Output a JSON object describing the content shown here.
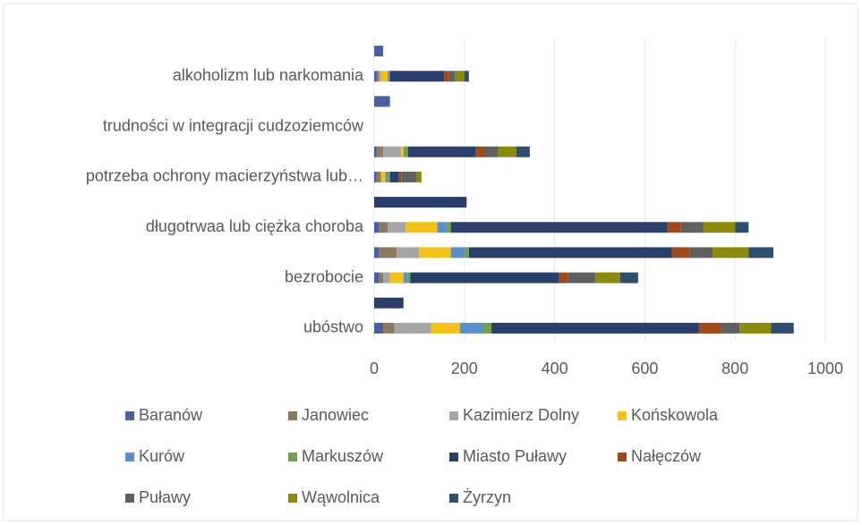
{
  "chart_data": {
    "type": "stacked-barh",
    "categories": [
      "ubóstwo",
      null,
      "bezrobocie",
      null,
      "długotrwaa lub ciężka choroba",
      null,
      "potrzeba ochrony macierzyństwa lub…",
      null,
      "trudności w integracji cudzoziemców",
      null,
      "alkoholizm lub narkomania",
      null
    ],
    "series": [
      {
        "name": "Baranów",
        "color": "#4a5fa0",
        "values": [
          20,
          0,
          10,
          10,
          10,
          0,
          5,
          5,
          0,
          35,
          5,
          20
        ]
      },
      {
        "name": "Janowiec",
        "color": "#8c7a5e",
        "values": [
          25,
          0,
          10,
          40,
          20,
          0,
          10,
          15,
          0,
          0,
          5,
          0
        ]
      },
      {
        "name": "Kazimierz Dolny",
        "color": "#a5a5a5",
        "values": [
          80,
          0,
          15,
          50,
          40,
          0,
          0,
          40,
          0,
          0,
          5,
          0
        ]
      },
      {
        "name": "Końskowola",
        "color": "#f2c21a",
        "values": [
          65,
          0,
          30,
          70,
          70,
          0,
          10,
          5,
          0,
          0,
          15,
          0
        ]
      },
      {
        "name": "Kurów",
        "color": "#5b8fc9",
        "values": [
          50,
          0,
          10,
          30,
          20,
          0,
          5,
          0,
          0,
          0,
          5,
          0
        ]
      },
      {
        "name": "Markuszów",
        "color": "#70a050",
        "values": [
          20,
          0,
          5,
          10,
          10,
          0,
          5,
          10,
          0,
          0,
          0,
          0
        ]
      },
      {
        "name": "Miasto Puławy",
        "color": "#2a3f6a",
        "values": [
          460,
          65,
          330,
          450,
          480,
          205,
          20,
          150,
          0,
          0,
          120,
          0
        ]
      },
      {
        "name": "Nałęczów",
        "color": "#9e4a1a",
        "values": [
          50,
          0,
          20,
          40,
          30,
          0,
          5,
          20,
          0,
          0,
          10,
          0
        ]
      },
      {
        "name": "Puławy",
        "color": "#606060",
        "values": [
          40,
          0,
          60,
          50,
          50,
          0,
          35,
          30,
          0,
          0,
          15,
          0
        ]
      },
      {
        "name": "Wąwolnica",
        "color": "#8a8a10",
        "values": [
          70,
          0,
          55,
          80,
          70,
          0,
          10,
          40,
          0,
          0,
          20,
          0
        ]
      },
      {
        "name": "Żyrzyn",
        "color": "#2f4f6f",
        "values": [
          50,
          0,
          40,
          55,
          30,
          0,
          0,
          30,
          0,
          0,
          10,
          0
        ]
      }
    ],
    "xlim": [
      0,
      1000
    ],
    "xticks": [
      0,
      200,
      400,
      600,
      800,
      1000
    ],
    "grid": true
  }
}
